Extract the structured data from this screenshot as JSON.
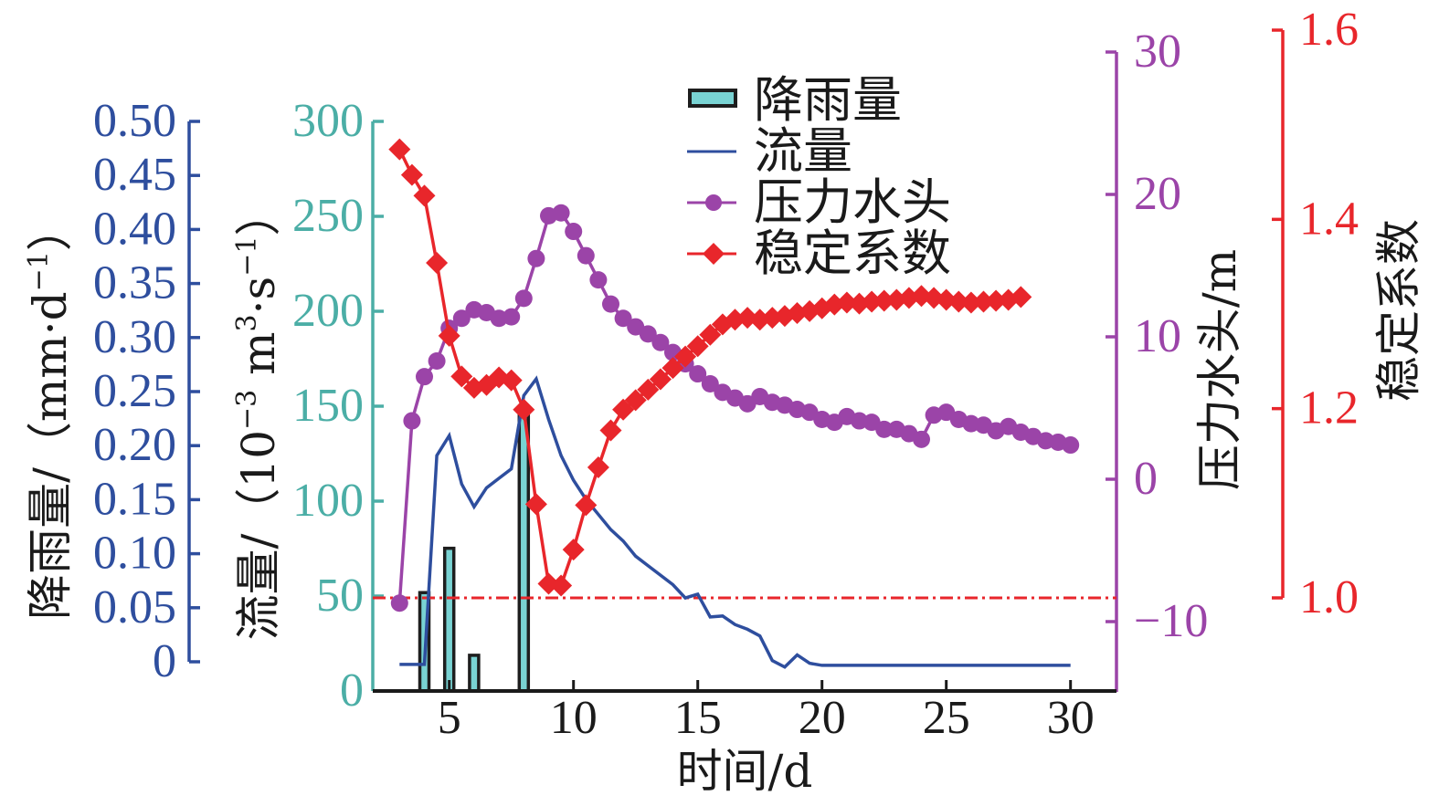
{
  "chart_data": {
    "type": "line",
    "title": "",
    "xlabel": "时间/d",
    "xlim": [
      1.9,
      31.9
    ],
    "x_ticks": [
      5,
      10,
      15,
      20,
      25,
      30
    ],
    "x_tick_labels": [
      "5",
      "10",
      "15",
      "20",
      "25",
      "30"
    ],
    "grid": false,
    "axes": {
      "rainfall": {
        "side": "left-outer",
        "color": "#2e4e9e",
        "title_parts": [
          {
            "text": "降雨量/（mm·d"
          },
          {
            "text": "−1",
            "sup": true
          },
          {
            "text": "）"
          }
        ],
        "ylim": [
          0,
          0.5
        ],
        "ticks": [
          0,
          0.05,
          0.1,
          0.15,
          0.2,
          0.25,
          0.3,
          0.35,
          0.4,
          0.45,
          0.5
        ],
        "tick_labels": [
          "0",
          "0.05",
          "0.10",
          "0.15",
          "0.20",
          "0.25",
          "0.30",
          "0.35",
          "0.40",
          "0.45",
          "0.50"
        ]
      },
      "flow": {
        "side": "left-inner",
        "color": "#4baea6",
        "title_parts": [
          {
            "text": "流量/（10"
          },
          {
            "text": "−3",
            "sup": true
          },
          {
            "text": " m"
          },
          {
            "text": "3",
            "sup": true
          },
          {
            "text": "·s"
          },
          {
            "text": "−1",
            "sup": true
          },
          {
            "text": "）"
          }
        ],
        "ylim": [
          0,
          300
        ],
        "ticks": [
          0,
          50,
          100,
          150,
          200,
          250,
          300
        ],
        "tick_labels": [
          "0",
          "50",
          "100",
          "150",
          "200",
          "250",
          "300"
        ]
      },
      "head": {
        "side": "right-inner",
        "color": "#9b44a8",
        "title": "压力水头/m",
        "ylim": [
          -14.9,
          30
        ],
        "ticks": [
          -10,
          0,
          10,
          20,
          30
        ],
        "tick_labels": [
          "−10",
          "0",
          "10",
          "20",
          "30"
        ]
      },
      "stability": {
        "side": "right-outer",
        "color": "#e8262b",
        "title": "稳定系数",
        "ylim": [
          1.0,
          1.6
        ],
        "ticks": [
          1.0,
          1.2,
          1.4,
          1.6
        ],
        "tick_labels": [
          "1.0",
          "1.2",
          "1.4",
          "1.6"
        ]
      }
    },
    "legend": {
      "position": "top-center"
    },
    "series": [
      {
        "name": "降雨量",
        "type": "bar",
        "axis": "rainfall",
        "fill": "#79d3d3",
        "edge": "#1e1e1e",
        "x": [
          4,
          5,
          6,
          8
        ],
        "values": [
          0.064,
          0.105,
          0.006,
          0.23
        ]
      },
      {
        "name": "流量",
        "type": "line",
        "axis": "flow",
        "color": "#2e4e9e",
        "x": [
          3,
          3.5,
          4,
          4.5,
          5,
          5.5,
          6,
          6.5,
          7,
          7.5,
          8,
          8.5,
          9,
          9.5,
          10,
          10.5,
          11,
          11.5,
          12,
          12.5,
          13,
          13.5,
          14,
          14.5,
          15,
          15.5,
          16,
          16.5,
          17,
          17.5,
          18,
          18.5,
          19,
          19.5,
          20,
          21,
          22,
          23,
          24,
          25,
          26,
          27,
          28,
          29,
          30
        ],
        "values": [
          14,
          14,
          14,
          124,
          134.5,
          109,
          97,
          107,
          112,
          117,
          155.6,
          164.4,
          143,
          124,
          111,
          101,
          93,
          85,
          79,
          71,
          66,
          61,
          56,
          49,
          51,
          39,
          39.5,
          35,
          32.5,
          29,
          16,
          12.6,
          19,
          14.6,
          13.5,
          13.5,
          13.5,
          13.5,
          13.5,
          13.5,
          13.5,
          13.5,
          13.5,
          13.5,
          13.5
        ]
      },
      {
        "name": "压力水头",
        "type": "line",
        "marker": "circle",
        "axis": "head",
        "color": "#9b44a8",
        "x": [
          3,
          3.5,
          4,
          4.5,
          5,
          5.5,
          6,
          6.5,
          7,
          7.5,
          8,
          8.5,
          9,
          9.5,
          10,
          10.5,
          11,
          11.5,
          12,
          12.5,
          13,
          13.5,
          14,
          14.5,
          15,
          15.5,
          16,
          16.5,
          17,
          17.5,
          18,
          18.5,
          19,
          19.5,
          20,
          20.5,
          21,
          21.5,
          22,
          22.5,
          23,
          23.5,
          24,
          24.5,
          25,
          25.5,
          26,
          26.5,
          27,
          27.5,
          28,
          28.5,
          29,
          29.5,
          30
        ],
        "values": [
          -8.7,
          4.1,
          7.2,
          8.3,
          10.6,
          11.3,
          11.9,
          11.7,
          11.3,
          11.4,
          12.7,
          15.5,
          18.5,
          18.7,
          17.4,
          15.7,
          14.0,
          12.3,
          11.3,
          10.7,
          10.2,
          9.6,
          8.9,
          8.1,
          7.4,
          6.7,
          6.1,
          5.7,
          5.3,
          5.8,
          5.4,
          5.2,
          4.9,
          4.7,
          4.2,
          4.0,
          4.4,
          4.1,
          4.0,
          3.5,
          3.5,
          3.2,
          2.8,
          4.5,
          4.7,
          4.2,
          3.9,
          3.8,
          3.4,
          3.7,
          3.3,
          3.0,
          2.7,
          2.6,
          2.4
        ]
      },
      {
        "name": "稳定系数",
        "type": "line",
        "marker": "diamond",
        "axis": "stability",
        "color": "#e8262b",
        "x": [
          3,
          3.5,
          4,
          4.5,
          5,
          5.5,
          6,
          6.5,
          7,
          7.5,
          8,
          8.5,
          9,
          9.5,
          10,
          10.5,
          11,
          11.5,
          12,
          12.5,
          13,
          13.5,
          14,
          14.5,
          15,
          15.5,
          16,
          16.5,
          17,
          17.5,
          18,
          18.5,
          19,
          19.5,
          20,
          20.5,
          21,
          21.5,
          22,
          22.5,
          23,
          23.5,
          24,
          24.5,
          25,
          25.5,
          26,
          26.5,
          27,
          27.5,
          28
        ],
        "values": [
          1.474,
          1.447,
          1.425,
          1.354,
          1.277,
          1.234,
          1.222,
          1.225,
          1.233,
          1.23,
          1.199,
          1.099,
          1.015,
          1.013,
          1.051,
          1.098,
          1.138,
          1.177,
          1.199,
          1.209,
          1.22,
          1.231,
          1.243,
          1.255,
          1.266,
          1.278,
          1.289,
          1.294,
          1.296,
          1.294,
          1.296,
          1.298,
          1.301,
          1.303,
          1.306,
          1.31,
          1.312,
          1.311,
          1.313,
          1.314,
          1.315,
          1.317,
          1.319,
          1.317,
          1.315,
          1.313,
          1.312,
          1.313,
          1.314,
          1.315,
          1.318
        ]
      }
    ],
    "reference_lines": [
      {
        "axis": "stability",
        "value": 1.0,
        "style": "dash-dot",
        "color": "#e8262b"
      }
    ]
  }
}
